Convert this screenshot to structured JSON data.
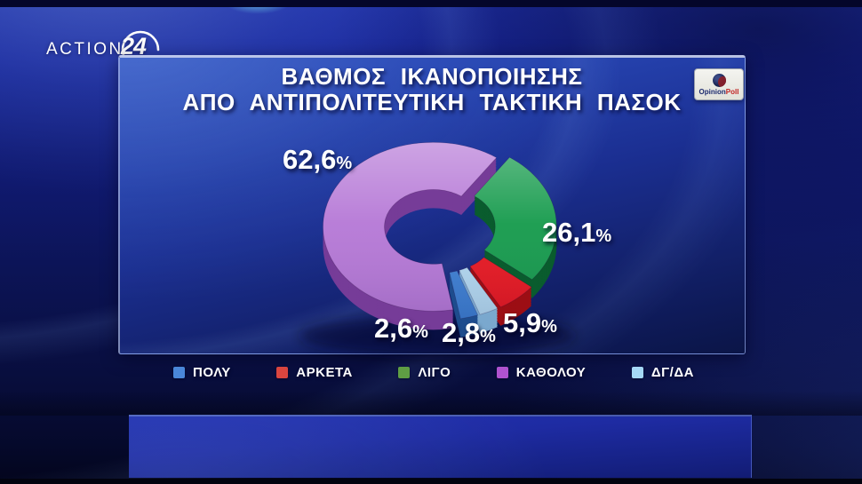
{
  "channel": {
    "name": "ACTION",
    "number": "24"
  },
  "header": {
    "title_line1": "ΒΑΘΜΟΣ ΙΚΑΝΟΠΟΙΗΣΗΣ",
    "title_line2": "ΑΠΟ ΑΝΤΙΠΟΛΙΤΕΥΤΙΚΗ ΤΑΚΤΙΚΗ ΠΑΣΟΚ"
  },
  "source_badge": {
    "part1": "Opinion",
    "part2": "Poll"
  },
  "chart_data": {
    "type": "pie",
    "title": "ΒΑΘΜΟΣ ΙΚΑΝΟΠΟΙΗΣΗΣ ΑΠΟ ΑΝΤΙΠΟΛΙΤΕΥΤΙΚΗ ΤΑΚΤΙΚΗ ΠΑΣΟΚ",
    "unit": "%",
    "percent_sign": "%",
    "legend_position": "bottom",
    "categories": [
      "ΠΟΛΥ",
      "ΑΡΚΕΤΑ",
      "ΛΙΓΟ",
      "ΚΑΘΟΛΟΥ",
      "ΔΓ/ΔΑ"
    ],
    "values": [
      2.6,
      5.9,
      26.1,
      62.6,
      2.8
    ],
    "start_angle_deg": 35,
    "slices": [
      {
        "name": "ΛΙΓΟ",
        "value": 26.1,
        "display": "26,1",
        "color": "#149a4b",
        "color_dark": "#0a5c2e",
        "explode": 9
      },
      {
        "name": "ΑΡΚΕΤΑ",
        "value": 5.9,
        "display": "5,9",
        "color": "#e8161f",
        "color_dark": "#9c0e14",
        "explode": 13
      },
      {
        "name": "ΔΓ/ΔΑ",
        "value": 2.8,
        "display": "2,8",
        "color": "#b2d8f0",
        "color_dark": "#7aa8ce",
        "explode": 13
      },
      {
        "name": "ΠΟΛΥ",
        "value": 2.6,
        "display": "2,6",
        "color": "#3c7ed2",
        "color_dark": "#1f4d8e",
        "explode": 13
      },
      {
        "name": "ΚΑΘΟΛΟΥ",
        "value": 62.6,
        "display": "62,6",
        "color": "#b577d6",
        "color_dark": "#763c98",
        "explode": 4
      }
    ],
    "legend": [
      {
        "label": "ΠΟΛΥ",
        "color": "#4a87d9"
      },
      {
        "label": "ΑΡΚΕΤΑ",
        "color": "#d9453f"
      },
      {
        "label": "ΛΙΓΟ",
        "color": "#5f9e44"
      },
      {
        "label": "ΚΑΘΟΛΟΥ",
        "color": "#af52cf"
      },
      {
        "label": "ΔΓ/ΔΑ",
        "color": "#a5d8f5"
      }
    ]
  }
}
